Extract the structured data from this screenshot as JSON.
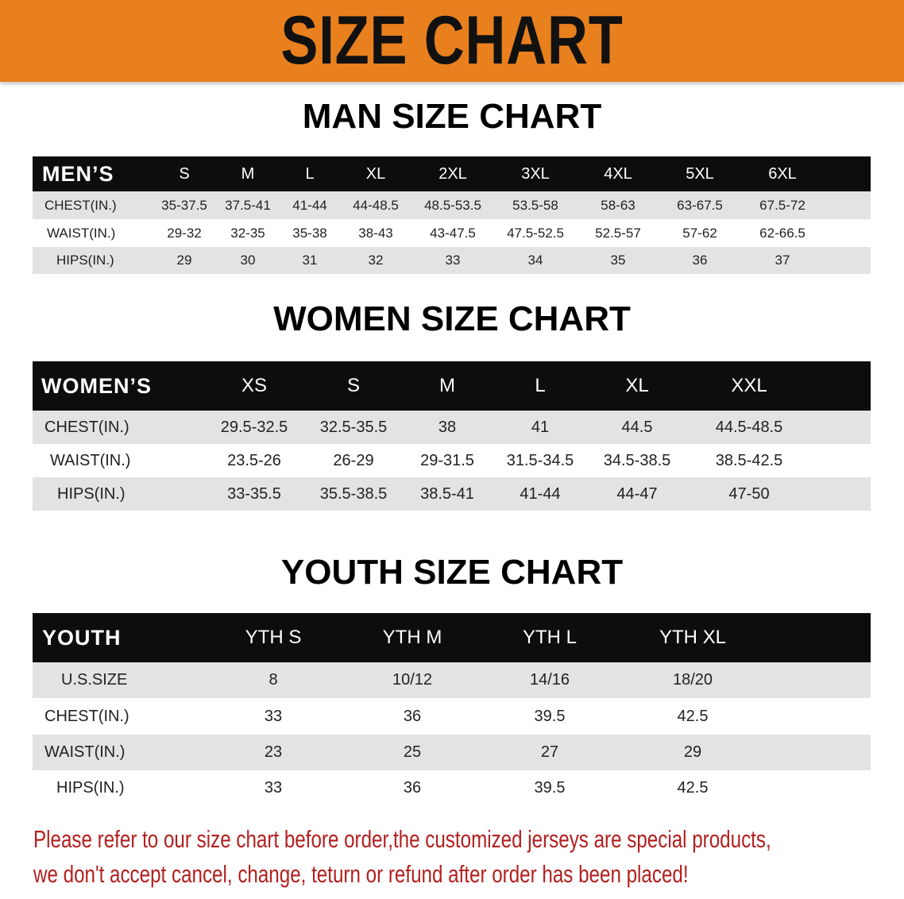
{
  "banner_title": "SIZE CHART",
  "colors": {
    "banner": "#e8801e",
    "header_row": "#0d0d0d",
    "stripe": "#e3e3e3",
    "notice": "#b3201f"
  },
  "tables": [
    {
      "title": "MAN SIZE CHART",
      "header": "MEN’S",
      "sizes": [
        "S",
        "M",
        "L",
        "XL",
        "2XL",
        "3XL",
        "4XL",
        "5XL",
        "6XL"
      ],
      "rows": [
        {
          "label": "CHEST(IN.)",
          "values": [
            "35-37.5",
            "37.5-41",
            "41-44",
            "44-48.5",
            "48.5-53.5",
            "53.5-58",
            "58-63",
            "63-67.5",
            "67.5-72"
          ]
        },
        {
          "label": "WAIST(IN.)",
          "values": [
            "29-32",
            "32-35",
            "35-38",
            "38-43",
            "43-47.5",
            "47.5-52.5",
            "52.5-57",
            "57-62",
            "62-66.5"
          ]
        },
        {
          "label": "HIPS(IN.)",
          "values": [
            "29",
            "30",
            "31",
            "32",
            "33",
            "34",
            "35",
            "36",
            "37"
          ]
        }
      ]
    },
    {
      "title": "WOMEN SIZE CHART",
      "header": "WOMEN’S",
      "sizes": [
        "XS",
        "S",
        "M",
        "L",
        "XL",
        "XXL"
      ],
      "rows": [
        {
          "label": "CHEST(IN.)",
          "values": [
            "29.5-32.5",
            "32.5-35.5",
            "38",
            "41",
            "44.5",
            "44.5-48.5"
          ]
        },
        {
          "label": "WAIST(IN.)",
          "values": [
            "23.5-26",
            "26-29",
            "29-31.5",
            "31.5-34.5",
            "34.5-38.5",
            "38.5-42.5"
          ]
        },
        {
          "label": "HIPS(IN.)",
          "values": [
            "33-35.5",
            "35.5-38.5",
            "38.5-41",
            "41-44",
            "44-47",
            "47-50"
          ]
        }
      ]
    },
    {
      "title": "YOUTH SIZE CHART",
      "header": "YOUTH",
      "sizes": [
        "YTH S",
        "YTH M",
        "YTH L",
        "YTH XL"
      ],
      "rows": [
        {
          "label": "U.S.SIZE",
          "values": [
            "8",
            "10/12",
            "14/16",
            "18/20"
          ]
        },
        {
          "label": "CHEST(IN.)",
          "values": [
            "33",
            "36",
            "39.5",
            "42.5"
          ]
        },
        {
          "label": "WAIST(IN.)",
          "values": [
            "23",
            "25",
            "27",
            "29"
          ]
        },
        {
          "label": "HIPS(IN.)",
          "values": [
            "33",
            "36",
            "39.5",
            "42.5"
          ]
        }
      ]
    }
  ],
  "notice": [
    "Please refer to our size chart before order,the customized jerseys are special products,",
    "we don't accept cancel, change, teturn or refund after order has been placed!"
  ]
}
